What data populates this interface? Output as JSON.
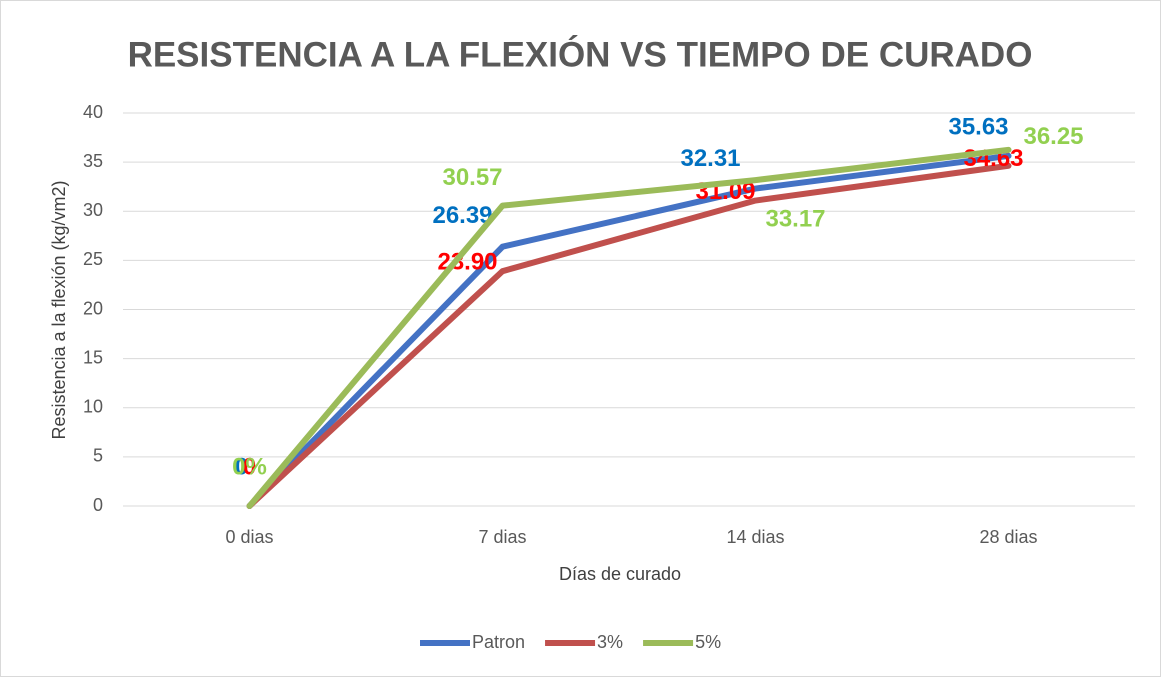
{
  "chart_data": {
    "type": "line",
    "title": "RESISTENCIA A LA FLEXIÓN VS TIEMPO DE CURADO",
    "x_label": "Días de curado",
    "y_label": "Resistencia a la flexión (kg/vm2)",
    "categories": [
      "0 dias",
      "7 dias",
      "14 dias",
      "28 dias"
    ],
    "series": [
      {
        "name": "Patron",
        "color": "#4472c4",
        "label_color": "#0070c0",
        "values": [
          0,
          26.39,
          32.31,
          35.63
        ],
        "value_labels": [
          "0",
          "26.39",
          "32.31",
          "35.63"
        ]
      },
      {
        "name": "3%",
        "color": "#c0504d",
        "label_color": "#ff0000",
        "values": [
          0,
          23.9,
          31.09,
          34.63
        ],
        "value_labels": [
          "0",
          "23.90",
          "31.09",
          "34.63"
        ]
      },
      {
        "name": "5%",
        "color": "#9bbb59",
        "label_color": "#92d050",
        "values": [
          0,
          30.57,
          33.17,
          36.25
        ],
        "value_labels": [
          "0%",
          "30.57",
          "33.17",
          "36.25"
        ]
      }
    ],
    "ylim": [
      0,
      40
    ],
    "yticks": [
      0,
      5,
      10,
      15,
      20,
      25,
      30,
      35,
      40
    ],
    "grid": true,
    "legend": "bottom"
  }
}
